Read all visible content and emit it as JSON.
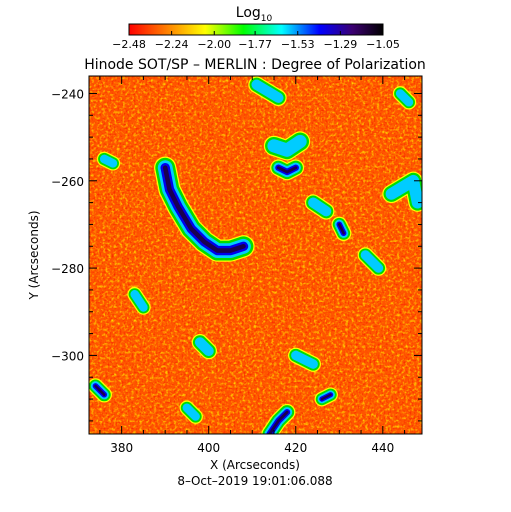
{
  "chart_data": {
    "type": "heatmap",
    "title": "Hinode SOT/SP – MERLIN : Degree of Polarization",
    "xlabel": "X (Arcseconds)",
    "ylabel": "Y (Arcseconds)",
    "timestamp": "8–Oct–2019 19:01:06.088",
    "xlim": [
      372.5,
      449
    ],
    "ylim": [
      -318,
      -236
    ],
    "x_ticks": [
      380,
      400,
      420,
      440
    ],
    "y_ticks": [
      -240,
      -260,
      -280,
      -300
    ],
    "x_tick_labels": [
      "380",
      "400",
      "420",
      "440"
    ],
    "y_tick_labels": [
      "−240",
      "−260",
      "−280",
      "−300"
    ],
    "colorbar": {
      "label_base": "Log",
      "label_sub": "10",
      "range": [
        -2.48,
        -1.05
      ],
      "ticks": [
        -2.48,
        -2.24,
        -2.0,
        -1.77,
        -1.53,
        -1.29,
        -1.05
      ],
      "tick_labels": [
        "−2.48",
        "−2.24",
        "−2.00",
        "−1.77",
        "−1.53",
        "−1.29",
        "−1.05"
      ],
      "colormap": [
        "#ff0000",
        "#ff8000",
        "#ffff00",
        "#00ff00",
        "#00ffff",
        "#0000ff",
        "#3b0070",
        "#000000"
      ]
    },
    "background_color": "#ff5500",
    "features": [
      {
        "kind": "strong",
        "points": [
          [
            390,
            -257
          ],
          [
            391,
            -262
          ],
          [
            393,
            -266
          ],
          [
            396,
            -271
          ],
          [
            399,
            -274
          ],
          [
            402,
            -276
          ],
          [
            405,
            -276
          ],
          [
            408,
            -275
          ]
        ],
        "width": 1.6
      },
      {
        "kind": "strong",
        "points": [
          [
            416,
            -257
          ],
          [
            418,
            -258
          ],
          [
            420,
            -257
          ]
        ],
        "width": 1.0
      },
      {
        "kind": "strong",
        "points": [
          [
            430,
            -270
          ],
          [
            431,
            -272
          ]
        ],
        "width": 0.9
      },
      {
        "kind": "strong",
        "points": [
          [
            374,
            -307
          ],
          [
            376,
            -309
          ]
        ],
        "width": 0.9
      },
      {
        "kind": "strong",
        "points": [
          [
            414,
            -318
          ],
          [
            416,
            -315
          ],
          [
            418,
            -313
          ]
        ],
        "width": 1.0
      },
      {
        "kind": "strong",
        "points": [
          [
            426,
            -310
          ],
          [
            428,
            -309
          ]
        ],
        "width": 0.8
      },
      {
        "kind": "medium",
        "points": [
          [
            415,
            -252
          ],
          [
            418,
            -253
          ],
          [
            421,
            -251
          ]
        ],
        "width": 1.4
      },
      {
        "kind": "medium",
        "points": [
          [
            424,
            -265
          ],
          [
            427,
            -267
          ]
        ],
        "width": 1.0
      },
      {
        "kind": "medium",
        "points": [
          [
            398,
            -297
          ],
          [
            400,
            -299
          ]
        ],
        "width": 1.0
      },
      {
        "kind": "medium",
        "points": [
          [
            442,
            -263
          ],
          [
            447,
            -260
          ],
          [
            448,
            -265
          ]
        ],
        "width": 1.2
      },
      {
        "kind": "medium",
        "points": [
          [
            436,
            -277
          ],
          [
            439,
            -280
          ]
        ],
        "width": 0.9
      },
      {
        "kind": "medium",
        "points": [
          [
            376,
            -255
          ],
          [
            378,
            -256
          ]
        ],
        "width": 0.8
      },
      {
        "kind": "medium",
        "points": [
          [
            411,
            -238
          ],
          [
            416,
            -241
          ]
        ],
        "width": 1.0
      },
      {
        "kind": "medium",
        "points": [
          [
            395,
            -312
          ],
          [
            397,
            -314
          ]
        ],
        "width": 0.8
      },
      {
        "kind": "medium",
        "points": [
          [
            420,
            -300
          ],
          [
            424,
            -302
          ]
        ],
        "width": 0.9
      },
      {
        "kind": "medium",
        "points": [
          [
            383,
            -286
          ],
          [
            385,
            -289
          ]
        ],
        "width": 0.8
      },
      {
        "kind": "medium",
        "points": [
          [
            444,
            -240
          ],
          [
            446,
            -242
          ]
        ],
        "width": 0.8
      }
    ]
  }
}
